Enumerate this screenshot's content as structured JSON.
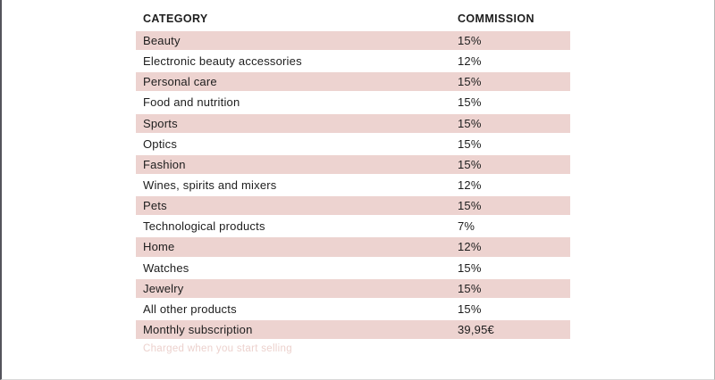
{
  "table": {
    "headers": {
      "category": "CATEGORY",
      "commission": "COMMISSION"
    },
    "rows": [
      {
        "category": "Beauty",
        "commission": "15%",
        "highlight": true
      },
      {
        "category": "Electronic beauty accessories",
        "commission": "12%",
        "highlight": false
      },
      {
        "category": "Personal care",
        "commission": "15%",
        "highlight": true
      },
      {
        "category": "Food and nutrition",
        "commission": "15%",
        "highlight": false
      },
      {
        "category": "Sports",
        "commission": "15%",
        "highlight": true
      },
      {
        "category": "Optics",
        "commission": "15%",
        "highlight": false
      },
      {
        "category": "Fashion",
        "commission": "15%",
        "highlight": true
      },
      {
        "category": "Wines, spirits and mixers",
        "commission": "12%",
        "highlight": false
      },
      {
        "category": "Pets",
        "commission": "15%",
        "highlight": true
      },
      {
        "category": "Technological products",
        "commission": "7%",
        "highlight": false
      },
      {
        "category": "Home",
        "commission": "12%",
        "highlight": true
      },
      {
        "category": "Watches",
        "commission": "15%",
        "highlight": false
      },
      {
        "category": "Jewelry",
        "commission": "15%",
        "highlight": true
      },
      {
        "category": "All other products",
        "commission": "15%",
        "highlight": false
      },
      {
        "category": "Monthly subscription",
        "commission": "39,95€",
        "highlight": true
      }
    ],
    "footnote": "Charged when you start selling"
  },
  "colors": {
    "row_highlight": "#edd3d0",
    "text": "#1d1d1d",
    "footnote": "#ecd1cd",
    "edge_dark": "#54545c",
    "edge_light": "#b5b5b5",
    "edge_bottom": "#d9d9d9"
  }
}
